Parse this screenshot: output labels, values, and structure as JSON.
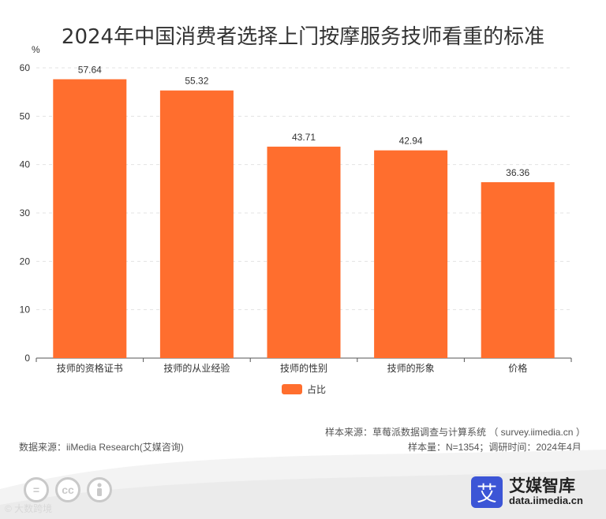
{
  "chart_data": {
    "type": "bar",
    "title": "2024年中国消费者选择上门按摩服务技师看重的标准",
    "ylabel": "%",
    "categories": [
      "技师的资格证书",
      "技师的从业经验",
      "技师的性别",
      "技师的形象",
      "价格"
    ],
    "series": [
      {
        "name": "占比",
        "values": [
          57.64,
          55.32,
          43.71,
          42.94,
          36.36
        ]
      }
    ],
    "data_labels": [
      "57.64",
      "55.32",
      "43.71",
      "42.94",
      "36.36"
    ],
    "yticks": [
      "0",
      "10",
      "20",
      "30",
      "40",
      "50",
      "60"
    ],
    "ylim": [
      0,
      60
    ],
    "grid": true,
    "legend_position": "bottom-center",
    "bar_color": "#FF6E2E"
  },
  "legend": {
    "label": "占比"
  },
  "notes": {
    "data_source": "数据来源：iiMedia Research(艾媒咨询)",
    "sample_source": "样本来源：草莓派数据调查与计算系统 （ survey.iimedia.cn ）",
    "sample_size": "样本量：N=1354；调研时间：2024年4月"
  },
  "brand": {
    "logo_char": "艾",
    "name": "艾媒智库",
    "url": "data.iimedia.cn"
  },
  "footer": {
    "cc_icons": [
      "equals-icon",
      "cc-icon",
      "person-icon"
    ],
    "cc_equals": "=",
    "cc_cc": "cc",
    "watermark": "© 大数跨境"
  }
}
